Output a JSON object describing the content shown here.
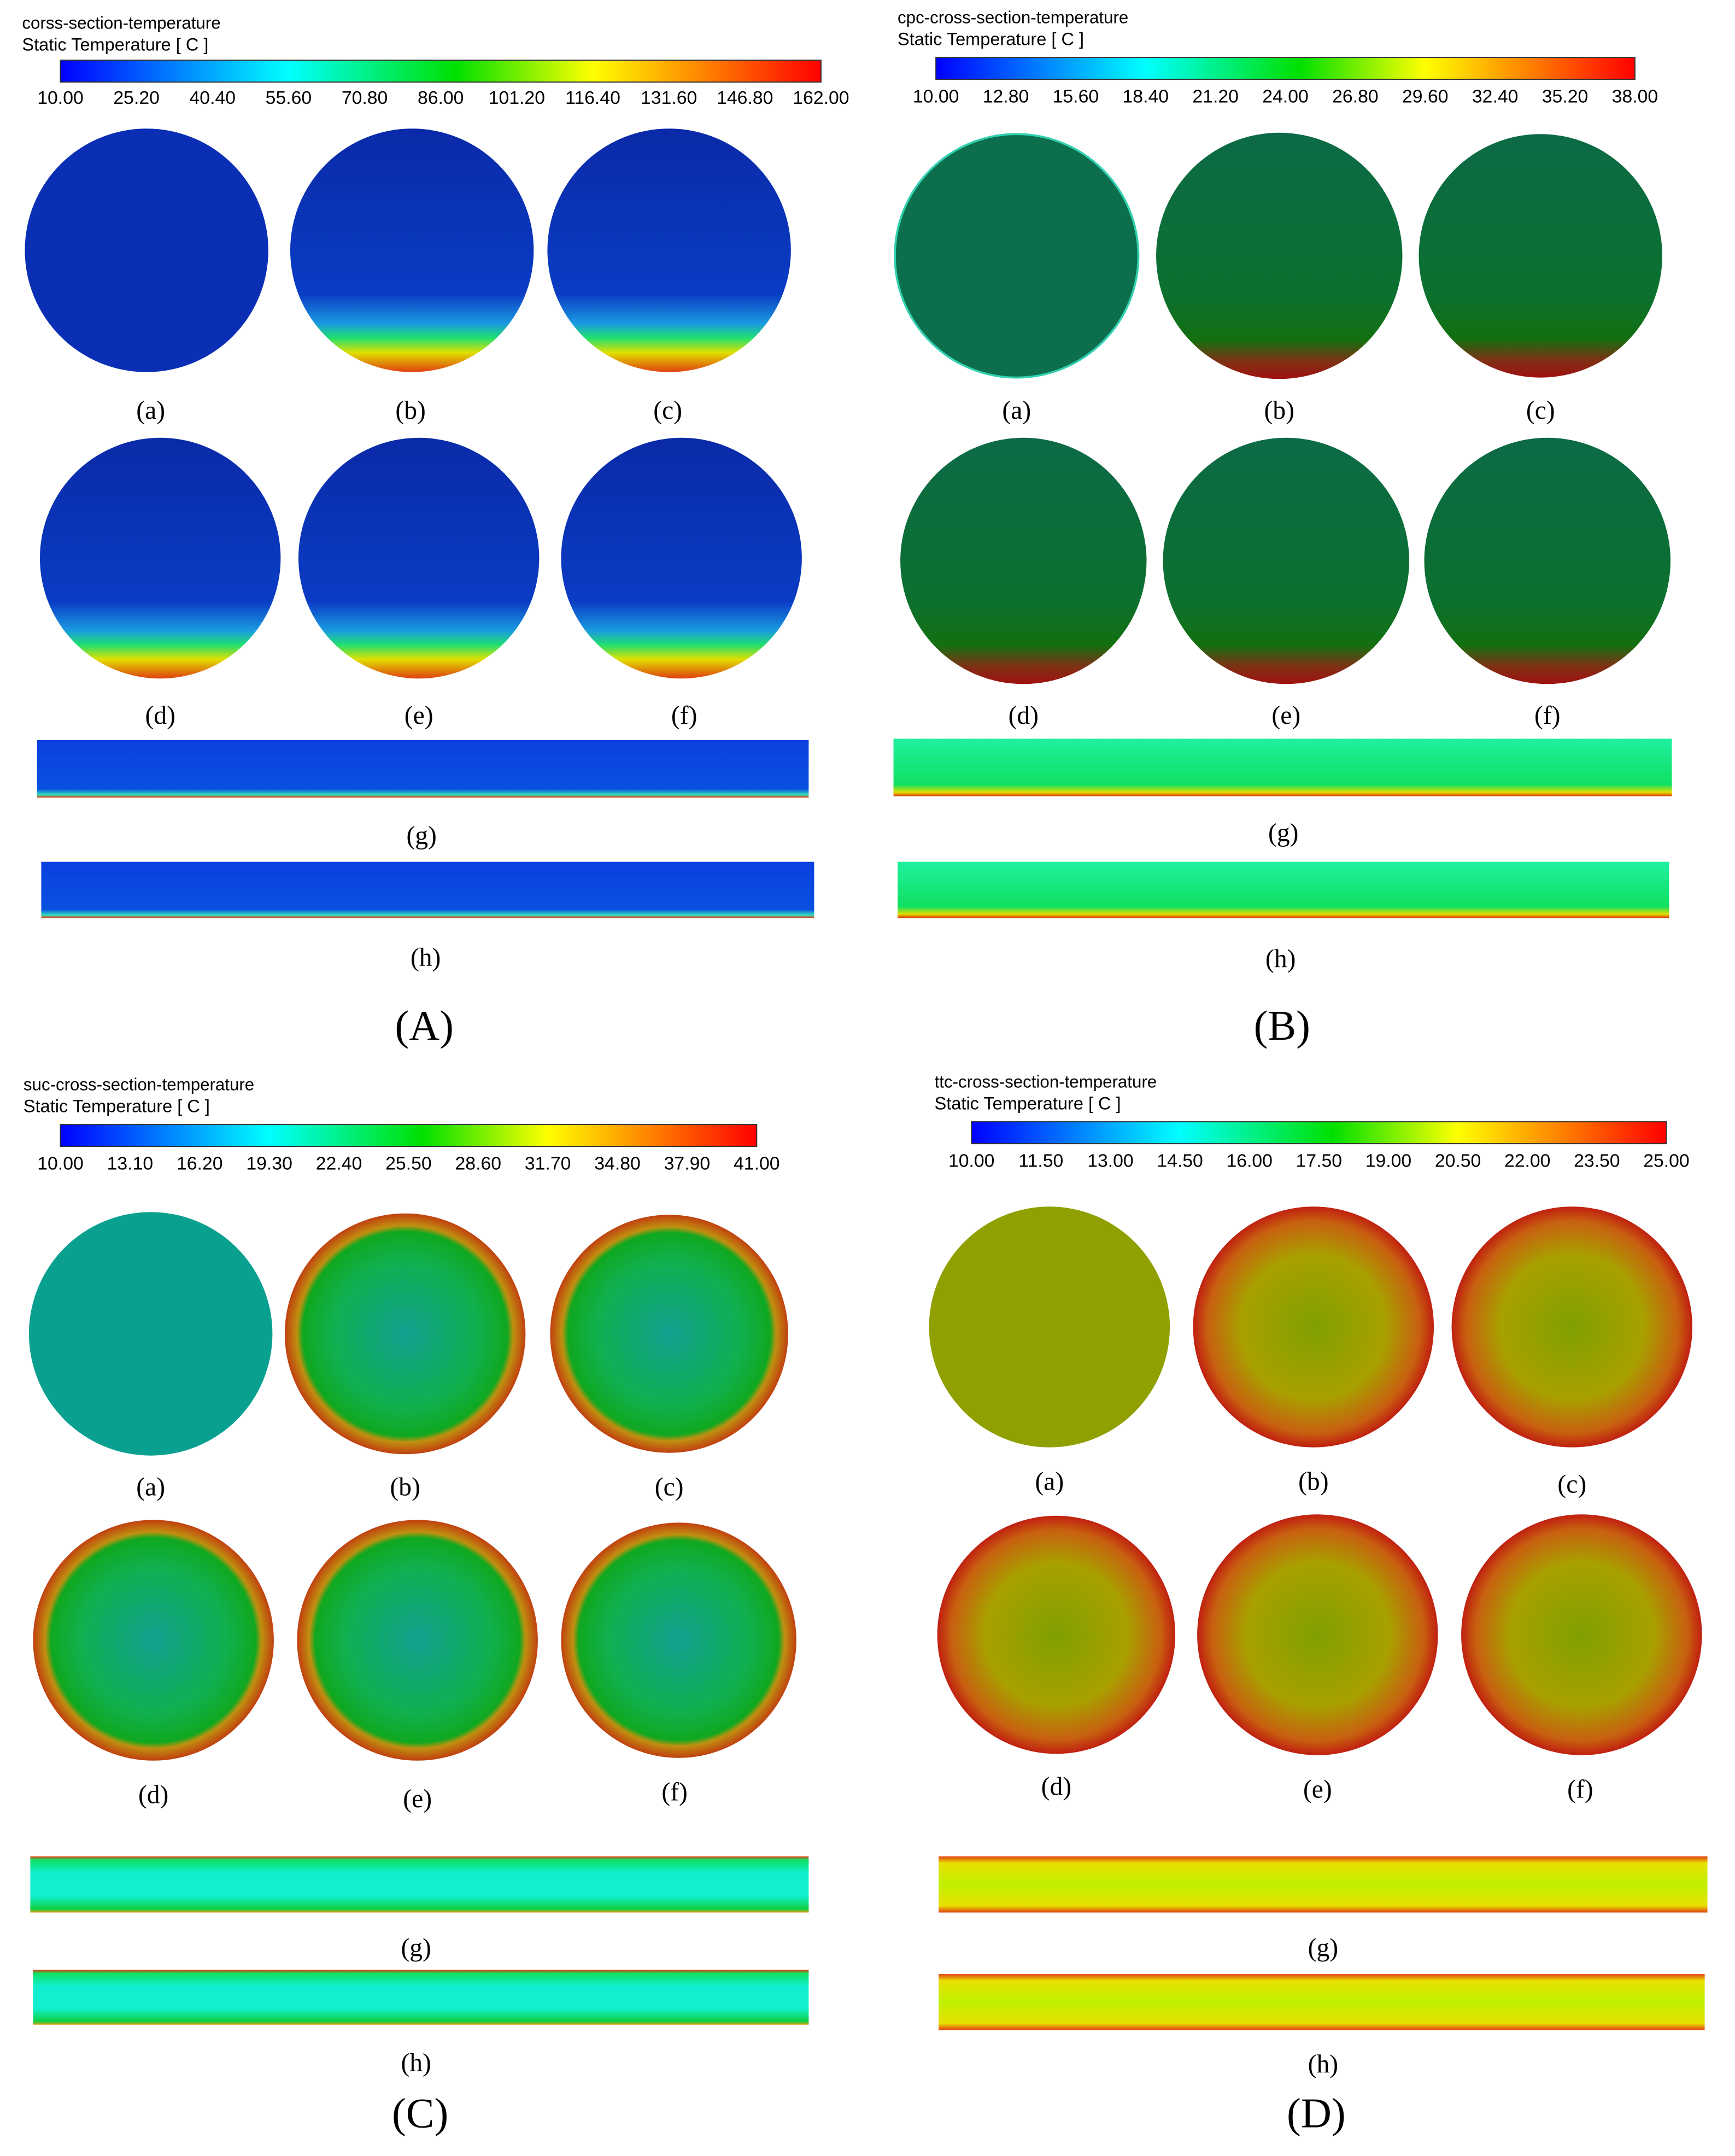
{
  "panels": [
    {
      "title": "corss-section-temperature",
      "subtitle": "Static Temperature [ C ]",
      "colorbar_ticks": [
        "10.00",
        "25.20",
        "40.40",
        "55.60",
        "70.80",
        "86.00",
        "101.20",
        "116.40",
        "131.60",
        "146.80",
        "162.00"
      ],
      "views": [
        "(a)",
        "(b)",
        "(c)",
        "(d)",
        "(e)",
        "(f)",
        "(g)",
        "(h)"
      ],
      "label": "(A)"
    },
    {
      "title": "cpc-cross-section-temperature",
      "subtitle": "Static Temperature [ C ]",
      "colorbar_ticks": [
        "10.00",
        "12.80",
        "15.60",
        "18.40",
        "21.20",
        "24.00",
        "26.80",
        "29.60",
        "32.40",
        "35.20",
        "38.00"
      ],
      "views": [
        "(a)",
        "(b)",
        "(c)",
        "(d)",
        "(e)",
        "(f)",
        "(g)",
        "(h)"
      ],
      "label": "(B)"
    },
    {
      "title": "suc-cross-section-temperature",
      "subtitle": "Static Temperature [ C ]",
      "colorbar_ticks": [
        "10.00",
        "13.10",
        "16.20",
        "19.30",
        "22.40",
        "25.50",
        "28.60",
        "31.70",
        "34.80",
        "37.90",
        "41.00"
      ],
      "views": [
        "(a)",
        "(b)",
        "(c)",
        "(d)",
        "(e)",
        "(f)",
        "(g)",
        "(h)"
      ],
      "label": "(C)"
    },
    {
      "title": "ttc-cross-section-temperature",
      "subtitle": "Static Temperature [ C ]",
      "colorbar_ticks": [
        "10.00",
        "11.50",
        "13.00",
        "14.50",
        "16.00",
        "17.50",
        "19.00",
        "20.50",
        "22.00",
        "23.50",
        "25.00"
      ],
      "views": [
        "(a)",
        "(b)",
        "(c)",
        "(d)",
        "(e)",
        "(f)",
        "(g)",
        "(h)"
      ],
      "label": "(D)"
    }
  ]
}
